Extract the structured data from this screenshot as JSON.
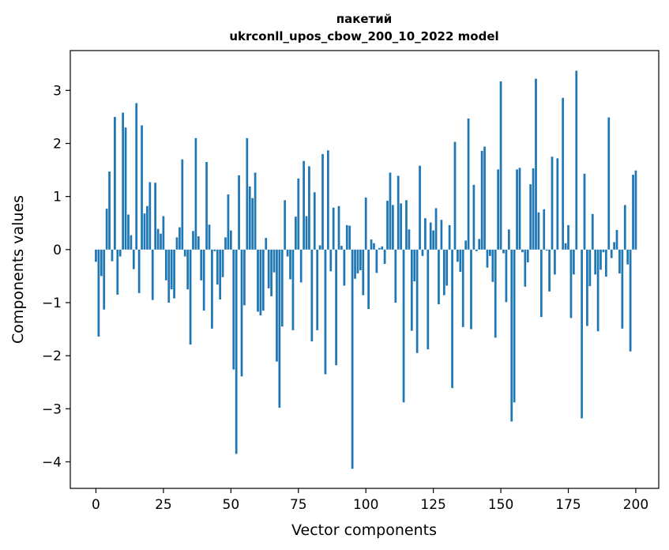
{
  "chart_data": {
    "type": "bar",
    "title": [
      "пакетий",
      "ukrconll_upos_cbow_200_10_2022 model"
    ],
    "xlabel": "Vector components",
    "ylabel": "Components values",
    "xlim": [
      -9.5,
      208.5
    ],
    "ylim": [
      -4.5,
      3.75
    ],
    "xticks": [
      0,
      25,
      50,
      75,
      100,
      125,
      150,
      175,
      200
    ],
    "yticks": [
      -4,
      -3,
      -2,
      -1,
      0,
      1,
      2,
      3
    ],
    "color": "#1f77b4",
    "grid": false,
    "x_start": 0,
    "values": [
      -0.23,
      -1.64,
      -0.5,
      -1.13,
      0.77,
      1.47,
      -0.22,
      2.5,
      -0.85,
      -0.13,
      2.58,
      2.3,
      0.66,
      0.27,
      -0.37,
      2.76,
      -0.82,
      2.34,
      0.68,
      0.82,
      1.27,
      -0.95,
      1.26,
      0.39,
      0.3,
      0.63,
      -0.58,
      -1.0,
      -0.75,
      -0.92,
      0.23,
      0.42,
      1.7,
      -0.13,
      -0.75,
      -1.79,
      0.35,
      2.1,
      0.25,
      -0.58,
      -1.15,
      1.65,
      0.47,
      -1.49,
      -0.03,
      -0.66,
      -0.94,
      -0.52,
      0.23,
      1.04,
      0.36,
      -2.26,
      -3.85,
      1.4,
      -2.39,
      -1.05,
      2.1,
      1.19,
      0.97,
      1.45,
      -1.17,
      -1.24,
      -1.15,
      0.22,
      -0.73,
      -0.88,
      -0.43,
      -2.11,
      -2.98,
      -1.45,
      0.93,
      -0.13,
      -0.56,
      -1.52,
      0.62,
      1.34,
      -0.62,
      1.67,
      0.63,
      1.57,
      -1.73,
      1.08,
      -1.52,
      0.08,
      1.8,
      -2.35,
      1.87,
      -0.41,
      0.79,
      -2.18,
      0.82,
      0.07,
      -0.68,
      0.46,
      0.45,
      -4.13,
      -0.55,
      -0.45,
      -0.39,
      -0.86,
      0.98,
      -1.12,
      0.19,
      0.12,
      -0.44,
      0.03,
      0.06,
      -0.27,
      0.92,
      1.45,
      0.84,
      -1.0,
      1.39,
      0.87,
      -2.88,
      0.93,
      0.38,
      -1.53,
      -0.6,
      -1.95,
      1.58,
      -0.12,
      0.59,
      -1.88,
      0.51,
      0.36,
      0.78,
      -1.03,
      0.56,
      -0.86,
      -0.68,
      0.46,
      -2.61,
      2.03,
      -0.23,
      -0.42,
      -1.46,
      0.17,
      2.47,
      -1.5,
      1.22,
      -0.03,
      0.2,
      1.86,
      1.94,
      -0.34,
      -0.12,
      -0.61,
      -1.66,
      1.51,
      3.17,
      -0.07,
      -0.99,
      0.38,
      -3.24,
      -2.88,
      1.51,
      1.54,
      -0.05,
      -0.7,
      -0.24,
      1.23,
      1.53,
      3.22,
      0.7,
      -1.27,
      0.76,
      -0.02,
      -0.79,
      1.75,
      -0.47,
      1.72,
      0.0,
      2.86,
      0.12,
      0.46,
      -1.29,
      -0.47,
      3.37,
      0.0,
      -3.18,
      1.43,
      -1.44,
      -0.69,
      0.67,
      -0.47,
      -1.54,
      -0.38,
      -0.05,
      -0.51,
      2.49,
      -0.16,
      0.14,
      0.37,
      -0.45,
      -1.49,
      0.84,
      -0.28,
      -1.92,
      1.41,
      1.49
    ]
  }
}
